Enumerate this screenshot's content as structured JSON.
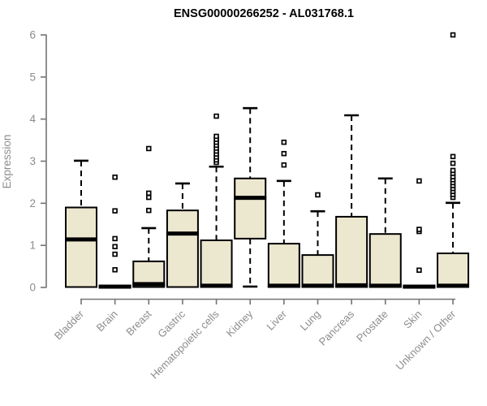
{
  "title": "ENSG00000266252 - AL031768.1",
  "chart_data": {
    "type": "boxplot",
    "title": "ENSG00000266252 - AL031768.1",
    "xlabel": "",
    "ylabel": "Expression",
    "ylim": [
      0,
      6
    ],
    "yticks": [
      0,
      1,
      2,
      3,
      4,
      5,
      6
    ],
    "grid": false,
    "legend": false,
    "categories": [
      "Bladder",
      "Brain",
      "Breast",
      "Gastric",
      "Hematopoietic cells",
      "Kidney",
      "Liver",
      "Lung",
      "Pancreas",
      "Prostate",
      "Skin",
      "Unknown / Other"
    ],
    "series": [
      {
        "name": "Bladder",
        "low": 0.01,
        "q1": 0.01,
        "median": 1.14,
        "q3": 1.9,
        "high": 3.01,
        "outliers": []
      },
      {
        "name": "Brain",
        "low": 0.0,
        "q1": 0.0,
        "median": 0.02,
        "q3": 0.04,
        "high": 0.04,
        "outliers": [
          0.42,
          0.79,
          0.97,
          1.16,
          1.82,
          2.62
        ]
      },
      {
        "name": "Breast",
        "low": 0.01,
        "q1": 0.01,
        "median": 0.08,
        "q3": 0.62,
        "high": 1.41,
        "outliers": [
          1.83,
          2.14,
          2.24,
          3.3
        ]
      },
      {
        "name": "Gastric",
        "low": 0.01,
        "q1": 0.01,
        "median": 1.28,
        "q3": 1.83,
        "high": 2.47,
        "outliers": []
      },
      {
        "name": "Hematopoietic cells",
        "low": 0.01,
        "q1": 0.01,
        "median": 0.04,
        "q3": 1.12,
        "high": 2.87,
        "outliers": [
          2.97,
          3.03,
          3.1,
          3.17,
          3.24,
          3.31,
          3.38,
          3.45,
          3.52,
          3.59,
          4.07
        ]
      },
      {
        "name": "Kidney",
        "low": 0.02,
        "q1": 1.16,
        "median": 2.13,
        "q3": 2.59,
        "high": 4.26,
        "outliers": []
      },
      {
        "name": "Liver",
        "low": 0.01,
        "q1": 0.01,
        "median": 0.04,
        "q3": 1.04,
        "high": 2.53,
        "outliers": [
          2.91,
          3.18,
          3.45
        ]
      },
      {
        "name": "Lung",
        "low": 0.01,
        "q1": 0.01,
        "median": 0.04,
        "q3": 0.77,
        "high": 1.81,
        "outliers": [
          2.2
        ]
      },
      {
        "name": "Pancreas",
        "low": 0.01,
        "q1": 0.01,
        "median": 0.05,
        "q3": 1.68,
        "high": 4.09,
        "outliers": []
      },
      {
        "name": "Prostate",
        "low": 0.01,
        "q1": 0.01,
        "median": 0.04,
        "q3": 1.27,
        "high": 2.59,
        "outliers": []
      },
      {
        "name": "Skin",
        "low": 0.0,
        "q1": 0.0,
        "median": 0.02,
        "q3": 0.04,
        "high": 0.04,
        "outliers": [
          0.41,
          1.33,
          1.38,
          2.53
        ]
      },
      {
        "name": "Unknown / Other",
        "low": 0.01,
        "q1": 0.01,
        "median": 0.04,
        "q3": 0.81,
        "high": 2.01,
        "outliers": [
          2.14,
          2.21,
          2.28,
          2.35,
          2.42,
          2.49,
          2.56,
          2.63,
          2.71,
          2.78,
          2.95,
          3.11,
          6.0
        ]
      }
    ],
    "colors": {
      "box_fill": "#ECE7CF",
      "box_border": "#000000",
      "median": "#000000",
      "whisker": "#000000",
      "outlier_stroke": "#000000",
      "outlier_fill": "#FFFFFF",
      "axis_line": "#737373",
      "tick_label": "#8C8C8C",
      "title": "#000000",
      "background": "#FFFFFF"
    }
  }
}
